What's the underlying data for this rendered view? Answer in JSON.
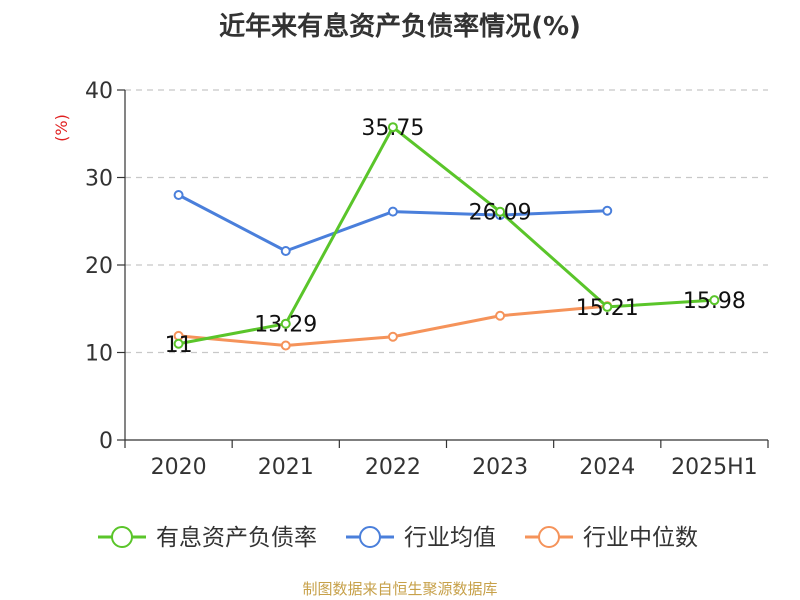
{
  "chart_data": {
    "type": "line",
    "title": "近年来有息资产负债率情况(%)",
    "ylabel": "(%)",
    "categories": [
      "2020",
      "2021",
      "2022",
      "2023",
      "2024",
      "2025H1"
    ],
    "ylim": [
      0,
      40
    ],
    "yticks": [
      0,
      10,
      20,
      30,
      40
    ],
    "grid": true,
    "legend_position": "bottom",
    "series": [
      {
        "name": "有息资产负债率",
        "color": "#5ac52a",
        "values": [
          11,
          13.29,
          35.75,
          26.09,
          15.21,
          15.98
        ],
        "labels": [
          "11",
          "13.29",
          "35.75",
          "26.09",
          "15.21",
          "15.98"
        ]
      },
      {
        "name": "行业均值",
        "color": "#4a7fdb",
        "values": [
          28.0,
          21.6,
          26.1,
          25.7,
          26.2,
          null
        ]
      },
      {
        "name": "行业中位数",
        "color": "#f5935a",
        "values": [
          11.9,
          10.8,
          11.8,
          14.2,
          15.3,
          null
        ]
      }
    ]
  },
  "source": "制图数据来自恒生聚源数据库"
}
